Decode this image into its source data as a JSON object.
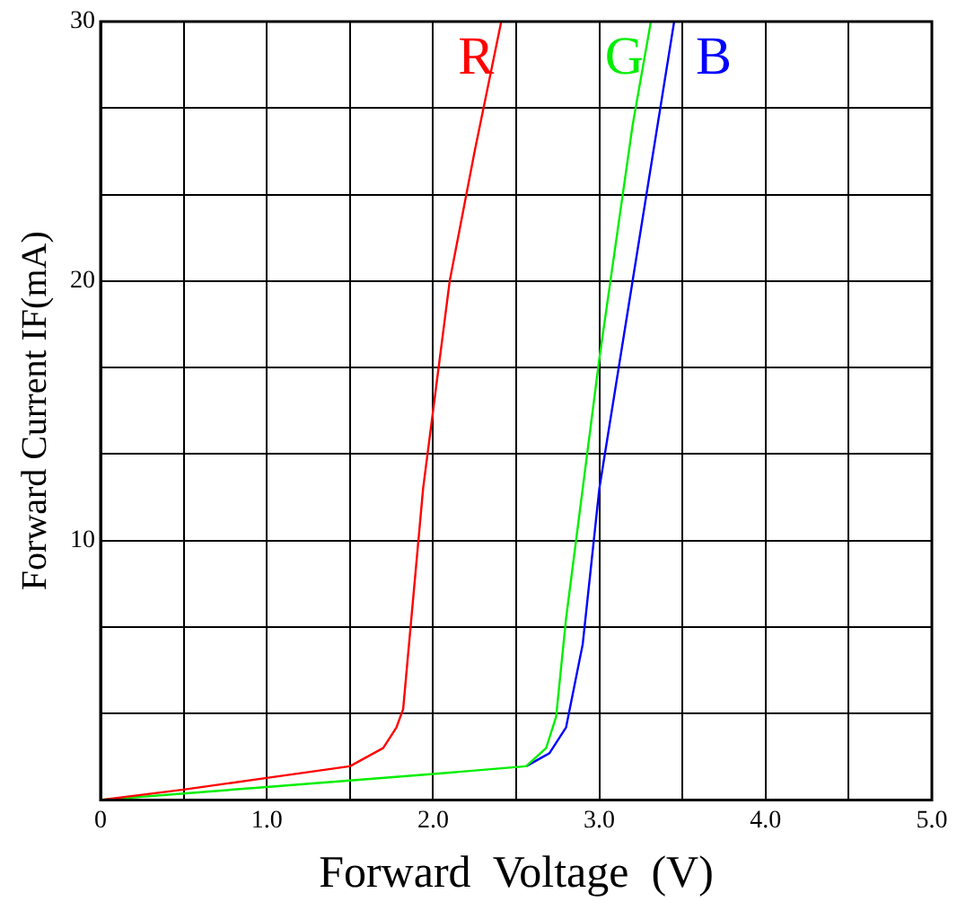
{
  "chart_data": {
    "type": "line",
    "xlabel": "Forward  Voltage  (V)",
    "ylabel": "Forward Current IF(mA)",
    "marker": "none",
    "grid": true,
    "legend": false,
    "xlim": [
      0,
      5
    ],
    "ylim": [
      0,
      30
    ],
    "xticks": [
      0,
      {
        "value": 0.5,
        "label": null
      },
      {
        "value": 1,
        "label": "1.0"
      },
      {
        "value": 1.5,
        "label": null
      },
      {
        "value": 2,
        "label": "2.0"
      },
      {
        "value": 2.5,
        "label": null
      },
      {
        "value": 3,
        "label": "3.0"
      },
      {
        "value": 3.5,
        "label": null
      },
      {
        "value": 4,
        "label": "4.0"
      },
      {
        "value": 4.5,
        "label": null
      },
      {
        "value": 5,
        "label": "5.0"
      }
    ],
    "yticks": [
      {
        "value": 0,
        "label": null
      },
      {
        "value": 3.33,
        "label": null
      },
      {
        "value": 6.67,
        "label": null
      },
      10,
      {
        "value": 13.33,
        "label": null
      },
      {
        "value": 16.67,
        "label": null
      },
      20,
      {
        "value": 23.33,
        "label": null
      },
      {
        "value": 26.67,
        "label": null
      },
      30
    ],
    "series": [
      {
        "name": "R",
        "color": "#ff0000",
        "x": [
          0,
          0.5,
          1.0,
          1.5,
          1.7,
          1.78,
          1.82,
          1.94,
          2.1,
          2.25,
          2.41
        ],
        "values": [
          0,
          0.4,
          0.85,
          1.3,
          2.0,
          2.8,
          3.5,
          12,
          20,
          25,
          30
        ]
      },
      {
        "name": "G",
        "color": "#00ee00",
        "x": [
          0,
          0.5,
          1.0,
          1.5,
          2.0,
          2.56,
          2.68,
          2.74,
          2.8,
          3.0,
          3.2,
          3.31
        ],
        "values": [
          0,
          0.25,
          0.5,
          0.75,
          1.0,
          1.3,
          2.0,
          3.2,
          7,
          17,
          26,
          30
        ]
      },
      {
        "name": "B",
        "color": "#0000ff",
        "x": [
          2.56,
          2.7,
          2.8,
          2.9,
          3.0,
          3.2,
          3.45
        ],
        "values": [
          1.3,
          1.8,
          2.8,
          6,
          12,
          20,
          30
        ]
      }
    ]
  }
}
